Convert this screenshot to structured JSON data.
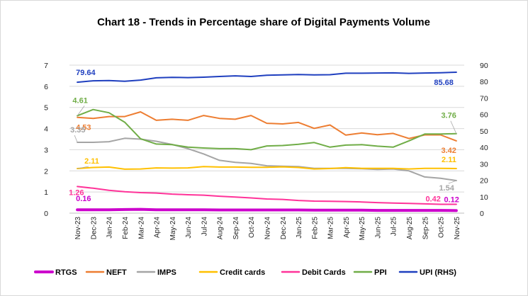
{
  "chart_data": {
    "type": "line",
    "title": "Chart 18 - Trends in Percentage share of Digital Payments Volume",
    "categories": [
      "Nov-23",
      "Dec-23",
      "Jan-24",
      "Feb-24",
      "Mar-24",
      "Apr-24",
      "May-24",
      "Jun-24",
      "Jul-24",
      "Aug-24",
      "Sep-24",
      "Oct-24",
      "Nov-24",
      "Dec-24",
      "Jan-25",
      "Feb-25",
      "Mar-25",
      "Apr-25",
      "May-25",
      "Jun-25",
      "Jul-25",
      "Aug-25",
      "Sep-25",
      "Oct-25",
      "Nov-25"
    ],
    "y_left": {
      "ylim": [
        0,
        7
      ],
      "ticks": [
        "0",
        "1",
        "2",
        "3",
        "4",
        "5",
        "6",
        "7"
      ]
    },
    "y_right": {
      "ylim": [
        0,
        90
      ],
      "ticks": [
        "0",
        "10",
        "20",
        "30",
        "40",
        "50",
        "60",
        "70",
        "80",
        "90"
      ]
    },
    "grid": true,
    "legend_position": "bottom",
    "series": [
      {
        "name": "RTGS",
        "color": "#cc00cc",
        "axis": "left",
        "width": 4,
        "values": [
          0.16,
          0.16,
          0.16,
          0.17,
          0.18,
          0.16,
          0.16,
          0.16,
          0.16,
          0.15,
          0.15,
          0.15,
          0.15,
          0.15,
          0.15,
          0.14,
          0.14,
          0.14,
          0.14,
          0.13,
          0.13,
          0.13,
          0.13,
          0.13,
          0.12
        ]
      },
      {
        "name": "NEFT",
        "color": "#ed7d31",
        "axis": "left",
        "width": 2,
        "values": [
          4.53,
          4.48,
          4.57,
          4.57,
          4.79,
          4.39,
          4.44,
          4.39,
          4.62,
          4.48,
          4.44,
          4.62,
          4.25,
          4.22,
          4.29,
          4.01,
          4.17,
          3.69,
          3.79,
          3.71,
          3.77,
          3.53,
          3.7,
          3.7,
          3.42
        ]
      },
      {
        "name": "IMPS",
        "color": "#a5a5a5",
        "axis": "left",
        "width": 2,
        "values": [
          3.35,
          3.35,
          3.38,
          3.54,
          3.5,
          3.4,
          3.25,
          3.05,
          2.8,
          2.5,
          2.4,
          2.35,
          2.24,
          2.22,
          2.2,
          2.12,
          2.12,
          2.12,
          2.1,
          2.07,
          2.09,
          2.0,
          1.71,
          1.65,
          1.54
        ]
      },
      {
        "name": "Credit cards",
        "color": "#ffc000",
        "axis": "left",
        "width": 2,
        "values": [
          2.11,
          2.16,
          2.18,
          2.08,
          2.09,
          2.14,
          2.13,
          2.14,
          2.2,
          2.18,
          2.18,
          2.17,
          2.17,
          2.19,
          2.16,
          2.09,
          2.11,
          2.15,
          2.12,
          2.12,
          2.12,
          2.09,
          2.12,
          2.12,
          2.11
        ]
      },
      {
        "name": "Debit Cards",
        "color": "#ff3399",
        "axis": "left",
        "width": 2,
        "values": [
          1.26,
          1.18,
          1.08,
          1.01,
          0.97,
          0.95,
          0.9,
          0.87,
          0.85,
          0.8,
          0.76,
          0.72,
          0.67,
          0.65,
          0.6,
          0.57,
          0.56,
          0.55,
          0.53,
          0.5,
          0.48,
          0.46,
          0.44,
          0.42,
          0.42
        ]
      },
      {
        "name": "PPI",
        "color": "#70ad47",
        "axis": "left",
        "width": 2,
        "values": [
          4.61,
          4.9,
          4.75,
          4.3,
          3.52,
          3.27,
          3.24,
          3.12,
          3.08,
          3.05,
          3.05,
          3.0,
          3.18,
          3.2,
          3.26,
          3.34,
          3.12,
          3.22,
          3.24,
          3.17,
          3.12,
          3.42,
          3.74,
          3.74,
          3.76
        ]
      },
      {
        "name": "UPI (RHS)",
        "color": "#1f3fbf",
        "axis": "right",
        "width": 2,
        "values": [
          79.64,
          80.5,
          80.6,
          80.2,
          80.9,
          82.3,
          82.6,
          82.4,
          82.7,
          83.1,
          83.5,
          83.1,
          83.9,
          84.1,
          84.3,
          84.1,
          84.2,
          85.1,
          85.1,
          85.2,
          85.3,
          85.0,
          85.2,
          85.4,
          85.68
        ]
      }
    ],
    "annotations": [
      {
        "series": "UPI (RHS)",
        "index": 0,
        "text": "79.64"
      },
      {
        "series": "UPI (RHS)",
        "index": 24,
        "text": "85.68"
      },
      {
        "series": "PPI",
        "index": 0,
        "text": "4.61"
      },
      {
        "series": "PPI",
        "index": 24,
        "text": "3.76"
      },
      {
        "series": "NEFT",
        "index": 0,
        "text": "4.53"
      },
      {
        "series": "NEFT",
        "index": 24,
        "text": "3.42"
      },
      {
        "series": "IMPS",
        "index": 0,
        "text": "3.35"
      },
      {
        "series": "IMPS",
        "index": 24,
        "text": "1.54"
      },
      {
        "series": "Credit cards",
        "index": 0,
        "text": "2.11"
      },
      {
        "series": "Credit cards",
        "index": 24,
        "text": "2.11"
      },
      {
        "series": "Debit Cards",
        "index": 0,
        "text": "1.26"
      },
      {
        "series": "Debit Cards",
        "index": 24,
        "text": "0.42"
      },
      {
        "series": "RTGS",
        "index": 0,
        "text": "0.16"
      },
      {
        "series": "RTGS",
        "index": 24,
        "text": "0.12"
      }
    ]
  }
}
